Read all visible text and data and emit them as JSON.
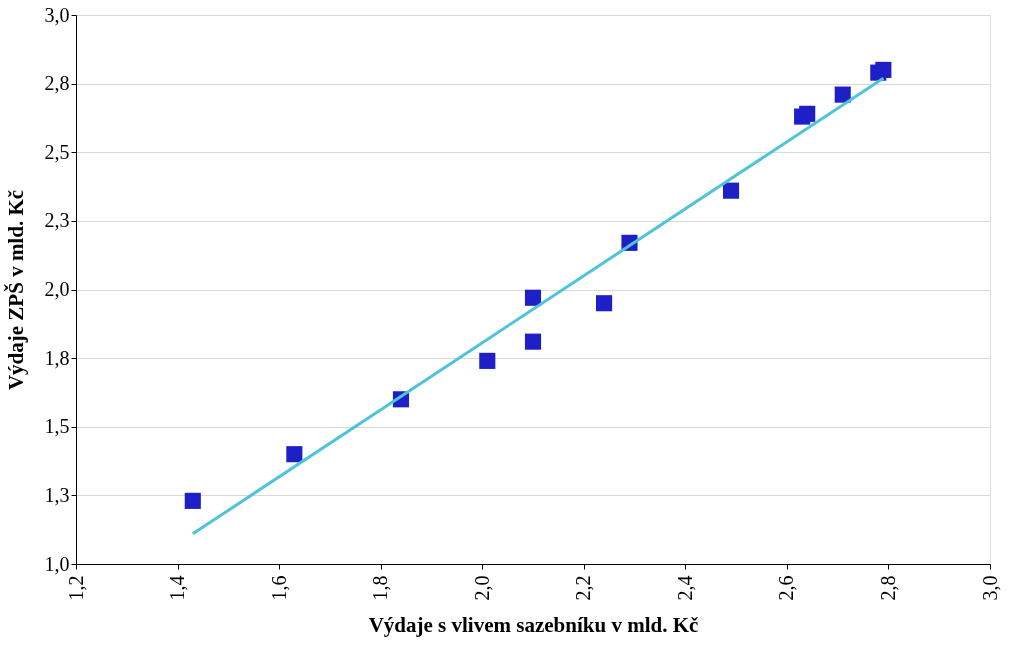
{
  "chart_data": {
    "type": "scatter",
    "xlabel": "Výdaje s vlivem sazebníku v mld. Kč",
    "ylabel": "Výdaje ZPŠ v mld. Kč",
    "xlim": [
      1.2,
      3.0
    ],
    "ylim": [
      1.0,
      3.0
    ],
    "xticks": [
      {
        "value": 1.2,
        "label": "1,2"
      },
      {
        "value": 1.4,
        "label": "1,4"
      },
      {
        "value": 1.6,
        "label": "1,6"
      },
      {
        "value": 1.8,
        "label": "1,8"
      },
      {
        "value": 2.0,
        "label": "2,0"
      },
      {
        "value": 2.2,
        "label": "2,2"
      },
      {
        "value": 2.4,
        "label": "2,4"
      },
      {
        "value": 2.6,
        "label": "2,6"
      },
      {
        "value": 2.8,
        "label": "2,8"
      },
      {
        "value": 3.0,
        "label": "3,0"
      }
    ],
    "yticks": [
      {
        "value": 1.0,
        "label": "1,0"
      },
      {
        "value": 1.25,
        "label": "1,3"
      },
      {
        "value": 1.5,
        "label": "1,5"
      },
      {
        "value": 1.75,
        "label": "1,8"
      },
      {
        "value": 2.0,
        "label": "2,0"
      },
      {
        "value": 2.25,
        "label": "2,3"
      },
      {
        "value": 2.5,
        "label": "2,5"
      },
      {
        "value": 2.75,
        "label": "2,8"
      },
      {
        "value": 3.0,
        "label": "3,0"
      }
    ],
    "grid": "y",
    "series": [
      {
        "marker": "square",
        "color": "#1f1fc8",
        "x": [
          1.43,
          1.63,
          1.84,
          2.01,
          2.1,
          2.1,
          2.24,
          2.29,
          2.49,
          2.63,
          2.64,
          2.71,
          2.78,
          2.79
        ],
        "values": [
          1.23,
          1.4,
          1.6,
          1.74,
          1.81,
          1.97,
          1.95,
          2.17,
          2.36,
          2.63,
          2.64,
          2.71,
          2.79,
          2.8
        ]
      },
      {
        "type": "line",
        "marker": "none",
        "color": "#4fc3d9",
        "x": [
          1.43,
          2.79
        ],
        "values": [
          1.11,
          2.77
        ]
      }
    ]
  }
}
